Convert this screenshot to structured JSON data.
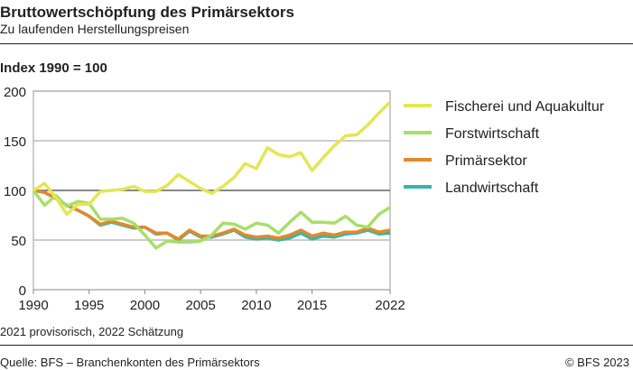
{
  "header": {
    "title": "Bruttowertschöpfung des Primärsektors",
    "subtitle": "Zu laufenden Herstellungspreisen"
  },
  "footer": {
    "note": "2021 provisorisch, 2022 Schätzung",
    "source": "Quelle: BFS – Branchenkonten des Primärsektors",
    "copyright": "© BFS 2023"
  },
  "chart_data": {
    "type": "line",
    "title": "Bruttowertschöpfung des Primärsektors",
    "ylabel": "Index 1990 = 100",
    "xlabel": "",
    "ylim": [
      0,
      200
    ],
    "yticks": [
      0,
      50,
      100,
      150,
      200
    ],
    "xticks": [
      1990,
      1995,
      2000,
      2005,
      2010,
      2015,
      2022
    ],
    "legend_position": "right",
    "grid": true,
    "x": [
      1990,
      1991,
      1992,
      1993,
      1994,
      1995,
      1996,
      1997,
      1998,
      1999,
      2000,
      2001,
      2002,
      2003,
      2004,
      2005,
      2006,
      2007,
      2008,
      2009,
      2010,
      2011,
      2012,
      2013,
      2014,
      2015,
      2016,
      2017,
      2018,
      2019,
      2020,
      2021,
      2022
    ],
    "series": [
      {
        "name": "Fischerei und Aquakultur",
        "color": "#e3e655",
        "values": [
          100,
          107,
          93,
          76,
          86,
          86,
          99,
          100,
          101,
          104,
          99,
          99,
          105,
          116,
          109,
          102,
          97,
          104,
          113,
          127,
          122,
          143,
          136,
          134,
          138,
          120,
          133,
          145,
          155,
          156,
          166,
          178,
          189
        ]
      },
      {
        "name": "Forstwirtschaft",
        "color": "#a9de6a",
        "values": [
          100,
          85,
          95,
          84,
          89,
          87,
          71,
          71,
          72,
          67,
          55,
          42,
          49,
          48,
          48,
          49,
          55,
          67,
          66,
          61,
          67,
          65,
          57,
          68,
          78,
          68,
          68,
          67,
          74,
          65,
          63,
          76,
          83
        ]
      },
      {
        "name": "Primärsektor",
        "color": "#e08a2e",
        "values": [
          100,
          98,
          92,
          85,
          80,
          74,
          66,
          69,
          66,
          63,
          63,
          57,
          57,
          51,
          60,
          54,
          54,
          57,
          61,
          55,
          53,
          54,
          52,
          55,
          60,
          54,
          57,
          55,
          58,
          58,
          62,
          58,
          60
        ]
      },
      {
        "name": "Landwirtschaft",
        "color": "#3ab5a5",
        "values": [
          100,
          98,
          92,
          85,
          80,
          74,
          65,
          68,
          65,
          62,
          63,
          56,
          57,
          50,
          59,
          53,
          53,
          56,
          60,
          53,
          51,
          52,
          50,
          52,
          57,
          51,
          54,
          53,
          56,
          57,
          60,
          56,
          57
        ]
      }
    ]
  }
}
